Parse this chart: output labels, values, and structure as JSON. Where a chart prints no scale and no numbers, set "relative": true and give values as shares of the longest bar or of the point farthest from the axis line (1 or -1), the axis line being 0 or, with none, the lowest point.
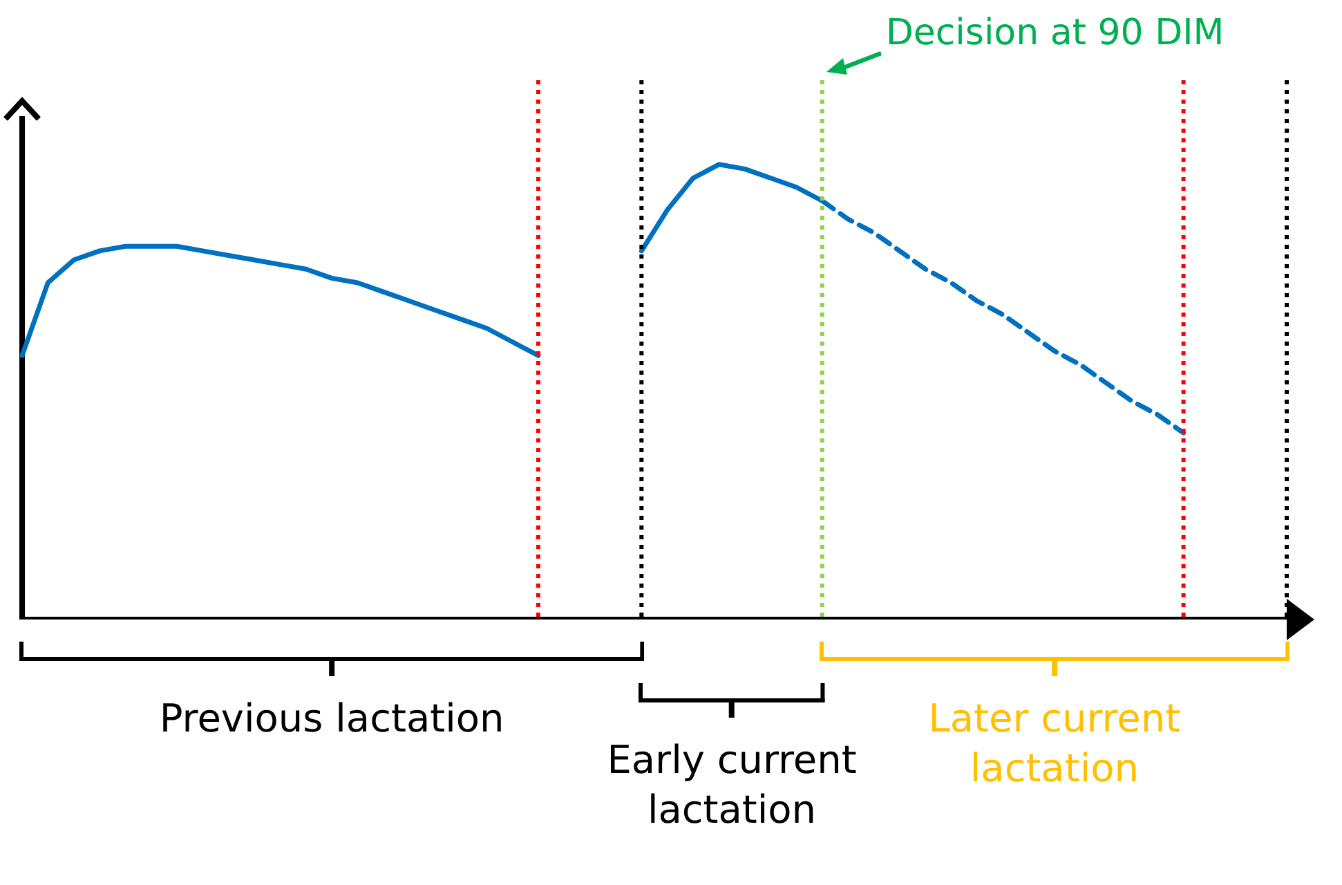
{
  "chart_data": {
    "type": "line",
    "relative": true,
    "grid": false,
    "legend": false,
    "marker": "none",
    "categories": [
      null,
      null,
      null,
      null,
      null,
      null,
      null,
      null,
      null,
      null,
      null,
      null,
      null,
      null,
      null,
      null,
      null,
      null,
      null,
      null,
      null,
      null,
      null,
      null,
      null,
      null,
      null,
      null,
      null,
      null,
      null,
      null,
      null,
      null,
      null,
      null,
      null,
      null,
      null,
      null,
      null,
      null,
      null,
      null,
      null,
      null,
      null,
      null,
      null,
      null
    ],
    "series": [
      {
        "color": "#0070c0",
        "line_style": "solid",
        "values": [
          0.58,
          0.74,
          0.79,
          0.81,
          0.82,
          0.82,
          0.82,
          0.81,
          0.8,
          0.79,
          0.78,
          0.77,
          0.75,
          0.74,
          0.72,
          0.7,
          0.68,
          0.66,
          0.64,
          0.61,
          0.58,
          null,
          null,
          null,
          null,
          null,
          null,
          null,
          null,
          null,
          null,
          null,
          null,
          null,
          null,
          null,
          null,
          null,
          null,
          null,
          null,
          null,
          null,
          null,
          null,
          null,
          null,
          null,
          null,
          null
        ]
      },
      {
        "color": "#0070c0",
        "line_style": "solid",
        "values": [
          null,
          null,
          null,
          null,
          null,
          null,
          null,
          null,
          null,
          null,
          null,
          null,
          null,
          null,
          null,
          null,
          null,
          null,
          null,
          null,
          null,
          null,
          null,
          null,
          0.81,
          0.9,
          0.97,
          1.0,
          0.99,
          0.97,
          0.95,
          0.92,
          null,
          null,
          null,
          null,
          null,
          null,
          null,
          null,
          null,
          null,
          null,
          null,
          null,
          null,
          null,
          null,
          null,
          null
        ]
      },
      {
        "color": "#0070c0",
        "line_style": "dashed",
        "values": [
          null,
          null,
          null,
          null,
          null,
          null,
          null,
          null,
          null,
          null,
          null,
          null,
          null,
          null,
          null,
          null,
          null,
          null,
          null,
          null,
          null,
          null,
          null,
          null,
          null,
          null,
          null,
          null,
          null,
          null,
          null,
          0.92,
          0.88,
          0.85,
          0.81,
          0.77,
          0.74,
          0.7,
          0.67,
          0.63,
          0.59,
          0.56,
          0.52,
          0.48,
          0.45,
          0.41,
          null,
          null,
          null,
          null
        ]
      }
    ],
    "annotations": [
      "Decision at 90 DIM",
      "Previous lactation",
      "Early current lactation",
      "Later current lactation"
    ]
  }
}
